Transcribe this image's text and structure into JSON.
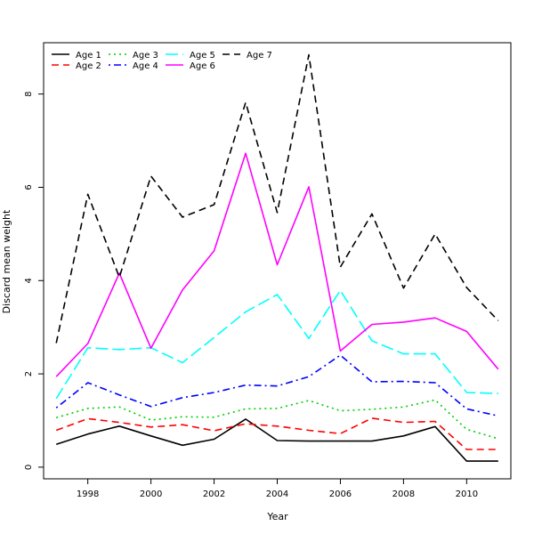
{
  "chart_data": {
    "type": "line",
    "title": "",
    "xlabel": "Year",
    "ylabel": "Discard mean weight",
    "xlim": [
      1996.6,
      2011.4
    ],
    "ylim": [
      -0.25,
      9.1
    ],
    "xticks": [
      1998,
      2000,
      2002,
      2004,
      2006,
      2008,
      2010
    ],
    "yticks": [
      0,
      2,
      4,
      6,
      8
    ],
    "grid": false,
    "legend_position": "top-left",
    "x": [
      1997,
      1998,
      1999,
      2000,
      2001,
      2002,
      2003,
      2004,
      2005,
      2006,
      2007,
      2008,
      2009,
      2010,
      2011
    ],
    "series": [
      {
        "name": "Age 1",
        "color": "#000000",
        "dash": "solid",
        "values": [
          0.49,
          0.71,
          0.88,
          0.67,
          0.47,
          0.6,
          1.03,
          0.57,
          0.56,
          0.56,
          0.56,
          0.67,
          0.87,
          0.13,
          0.13
        ]
      },
      {
        "name": "Age 2",
        "color": "#ff0000",
        "dash": "dashed",
        "values": [
          0.79,
          1.04,
          0.96,
          0.86,
          0.91,
          0.78,
          0.93,
          0.88,
          0.79,
          0.72,
          1.05,
          0.96,
          0.98,
          0.38,
          0.38
        ]
      },
      {
        "name": "Age 3",
        "color": "#00cd00",
        "dash": "dotted",
        "values": [
          1.06,
          1.26,
          1.29,
          1.01,
          1.08,
          1.07,
          1.25,
          1.26,
          1.43,
          1.21,
          1.24,
          1.29,
          1.44,
          0.81,
          0.61
        ]
      },
      {
        "name": "Age 4",
        "color": "#0000ff",
        "dash": "dotdash",
        "values": [
          1.27,
          1.81,
          1.55,
          1.3,
          1.49,
          1.6,
          1.76,
          1.74,
          1.94,
          2.4,
          1.83,
          1.84,
          1.81,
          1.25,
          1.1
        ]
      },
      {
        "name": "Age 5",
        "color": "#00ffff",
        "dash": "longdash",
        "values": [
          1.47,
          2.56,
          2.52,
          2.56,
          2.24,
          2.78,
          3.33,
          3.7,
          2.76,
          3.79,
          2.71,
          2.43,
          2.43,
          1.6,
          1.58
        ]
      },
      {
        "name": "Age 6",
        "color": "#ff00ff",
        "dash": "solid",
        "values": [
          1.94,
          2.65,
          4.16,
          2.55,
          3.8,
          4.64,
          6.73,
          4.34,
          6.01,
          2.49,
          3.06,
          3.11,
          3.2,
          2.91,
          2.1
        ]
      },
      {
        "name": "Age 7",
        "color": "#000000",
        "dash": "dashed",
        "values": [
          2.66,
          5.85,
          4.07,
          6.24,
          5.36,
          5.63,
          7.82,
          5.46,
          8.84,
          4.29,
          5.43,
          3.84,
          5.0,
          3.85,
          3.14
        ]
      }
    ]
  }
}
